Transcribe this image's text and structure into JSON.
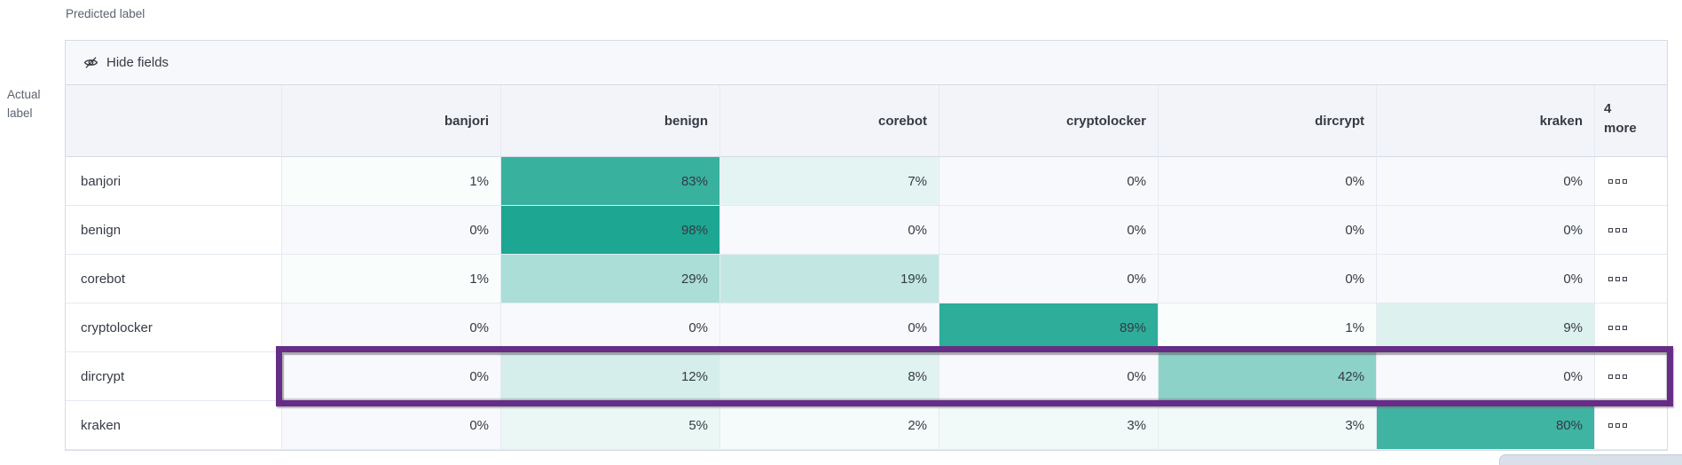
{
  "axis": {
    "predicted": "Predicted label",
    "actual_line1": "Actual",
    "actual_line2": "label"
  },
  "toolbar": {
    "hide_fields_label": "Hide fields"
  },
  "matrix": {
    "columns": [
      "banjori",
      "benign",
      "corebot",
      "cryptolocker",
      "dircrypt",
      "kraken"
    ],
    "more_column_lines": [
      "4",
      "more"
    ],
    "value_suffix": "%",
    "rows": [
      {
        "label": "banjori",
        "values": [
          1,
          83,
          7,
          0,
          0,
          0
        ],
        "highlighted": false
      },
      {
        "label": "benign",
        "values": [
          0,
          98,
          0,
          0,
          0,
          0
        ],
        "highlighted": false
      },
      {
        "label": "corebot",
        "values": [
          1,
          29,
          19,
          0,
          0,
          0
        ],
        "highlighted": false
      },
      {
        "label": "cryptolocker",
        "values": [
          0,
          0,
          0,
          89,
          1,
          9
        ],
        "highlighted": false
      },
      {
        "label": "dircrypt",
        "values": [
          0,
          12,
          8,
          0,
          42,
          0
        ],
        "highlighted": true
      },
      {
        "label": "kraken",
        "values": [
          0,
          5,
          2,
          3,
          3,
          80
        ],
        "highlighted": false
      }
    ]
  },
  "colors": {
    "heat_base": "#19A590",
    "zero_cell_bg": "#f7f9fc",
    "highlight_border": "#662d87",
    "header_bg": "#f2f4f9",
    "toolbar_bg": "#f7f8fc",
    "text": "#353a45",
    "muted_text": "#5b6370",
    "outer_border": "#d5dbe7",
    "inner_border": "#e5eaf3"
  },
  "icons": {
    "hide_fields": "eye-closed-icon",
    "row_actions": "boxes-horizontal-icon"
  }
}
